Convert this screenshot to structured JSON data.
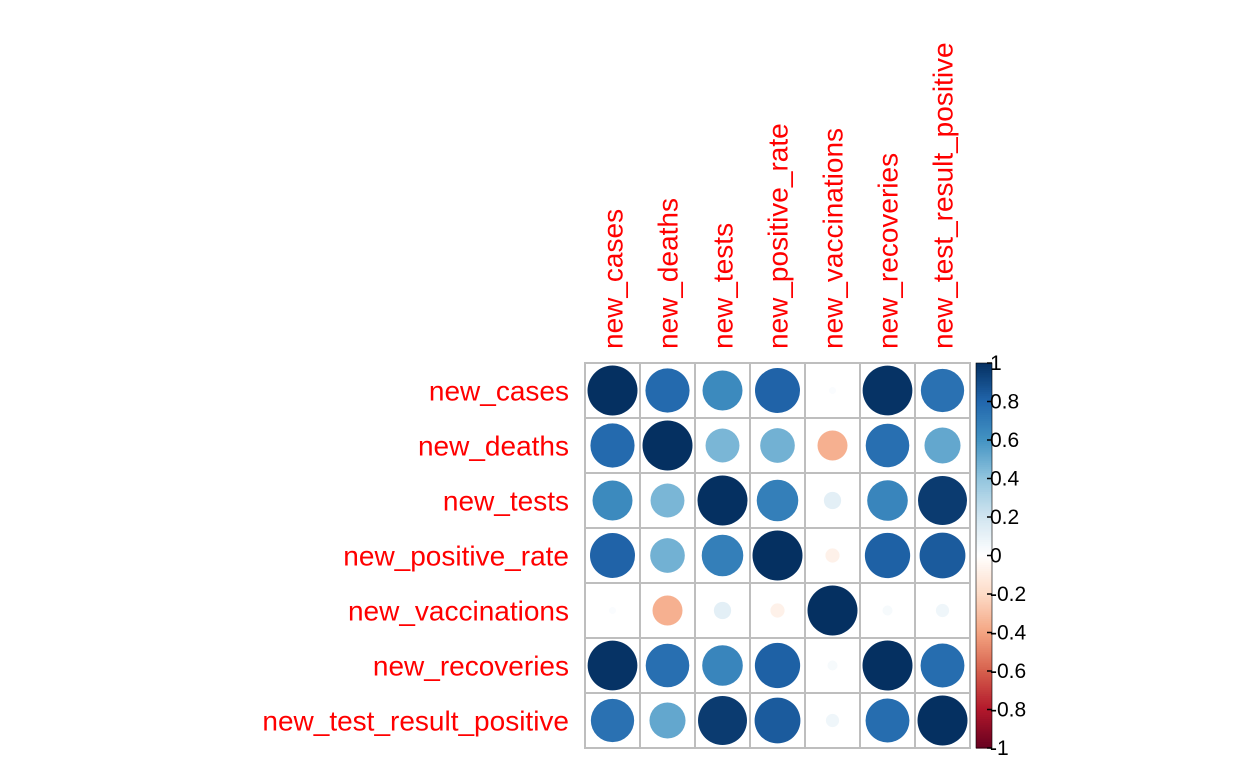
{
  "colors": {
    "label": "#ff0000",
    "grid": "#bebebe",
    "palette": [
      "#67001f",
      "#b2182b",
      "#d6604d",
      "#f4a582",
      "#fddbc7",
      "#ffffff",
      "#d1e5f0",
      "#92c5de",
      "#4393c3",
      "#2166ac",
      "#053061"
    ]
  },
  "chart_data": {
    "type": "heatmap",
    "style": "circle correlation matrix",
    "title": "",
    "variables": [
      "new_cases",
      "new_deaths",
      "new_tests",
      "new_positive_rate",
      "new_vaccinations",
      "new_recoveries",
      "new_test_result_positive"
    ],
    "matrix": [
      [
        1.0,
        0.78,
        0.64,
        0.81,
        0.02,
        0.99,
        0.75
      ],
      [
        0.78,
        1.0,
        0.46,
        0.48,
        -0.36,
        0.76,
        0.52
      ],
      [
        0.64,
        0.46,
        1.0,
        0.69,
        0.12,
        0.66,
        0.96
      ],
      [
        0.81,
        0.48,
        0.69,
        1.0,
        -0.08,
        0.82,
        0.84
      ],
      [
        0.02,
        -0.36,
        0.12,
        -0.08,
        1.0,
        0.04,
        0.07
      ],
      [
        0.99,
        0.76,
        0.66,
        0.82,
        0.04,
        1.0,
        0.77
      ],
      [
        0.75,
        0.52,
        0.96,
        0.84,
        0.07,
        0.77,
        1.0
      ]
    ],
    "colorbar": {
      "range": [
        -1,
        1
      ],
      "ticks": [
        "1",
        "0.8",
        "0.6",
        "0.4",
        "0.2",
        "0",
        "-0.2",
        "-0.4",
        "-0.6",
        "-0.8",
        "-1"
      ],
      "tick_values": [
        1,
        0.8,
        0.6,
        0.4,
        0.2,
        0,
        -0.2,
        -0.4,
        -0.6,
        -0.8,
        -1
      ],
      "placement": "right"
    }
  }
}
